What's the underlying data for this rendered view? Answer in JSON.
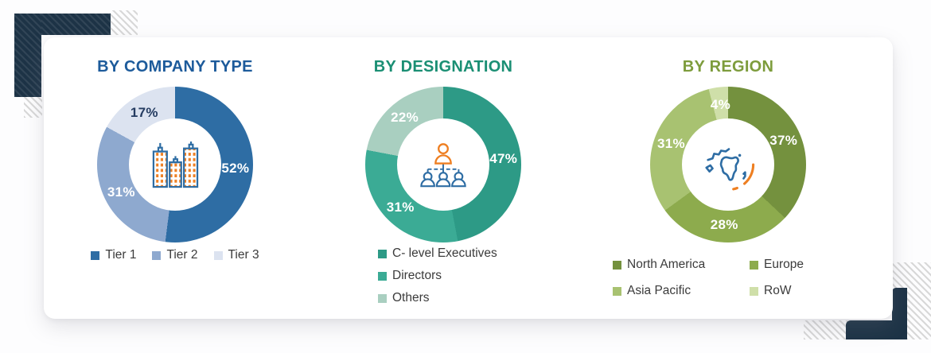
{
  "decor": {
    "navy_color": "#1d3346",
    "hatch_color": "#d8d8d8"
  },
  "icons": [
    "buildings-icon",
    "org-chart-icon",
    "globe-icon"
  ],
  "icon_colors": {
    "outline_blue": "#2e6da4",
    "accent_orange": "#ee7f22"
  },
  "chart_data": [
    {
      "type": "pie",
      "subtype": "donut",
      "title": "BY COMPANY TYPE",
      "title_color": "#1d5b9b",
      "labels": [
        "Tier 1",
        "Tier 2",
        "Tier 3"
      ],
      "values": [
        52,
        31,
        17
      ],
      "percent_labels": [
        "52%",
        "31%",
        "17%"
      ],
      "colors": [
        "#2e6da4",
        "#8ea9cf",
        "#dce3f0"
      ],
      "label_colors": [
        "#ffffff",
        "#ffffff",
        "#253c61"
      ],
      "legend_position": "bottom-row",
      "center_icon": "buildings-icon"
    },
    {
      "type": "pie",
      "subtype": "donut",
      "title": "BY DESIGNATION",
      "title_color": "#1b8f74",
      "labels": [
        "C- level Executives",
        "Directors",
        "Others"
      ],
      "values": [
        47,
        31,
        22
      ],
      "percent_labels": [
        "47%",
        "31%",
        "22%"
      ],
      "colors": [
        "#2d9a86",
        "#3bab95",
        "#a9cfc0"
      ],
      "label_colors": [
        "#ffffff",
        "#ffffff",
        "#ffffff"
      ],
      "legend_position": "bottom-column",
      "center_icon": "org-chart-icon"
    },
    {
      "type": "pie",
      "subtype": "donut",
      "title": "BY REGION",
      "title_color": "#7d9c3c",
      "labels": [
        "North America",
        "Europe",
        "Asia Pacific",
        "RoW"
      ],
      "values": [
        37,
        28,
        31,
        4
      ],
      "percent_labels": [
        "37%",
        "28%",
        "31%",
        "4%"
      ],
      "colors": [
        "#74913e",
        "#8dab4d",
        "#a8c271",
        "#cfdfa9"
      ],
      "label_colors": [
        "#ffffff",
        "#ffffff",
        "#ffffff",
        "#ffffff"
      ],
      "legend_position": "bottom-grid-2col",
      "center_icon": "globe-icon"
    }
  ]
}
